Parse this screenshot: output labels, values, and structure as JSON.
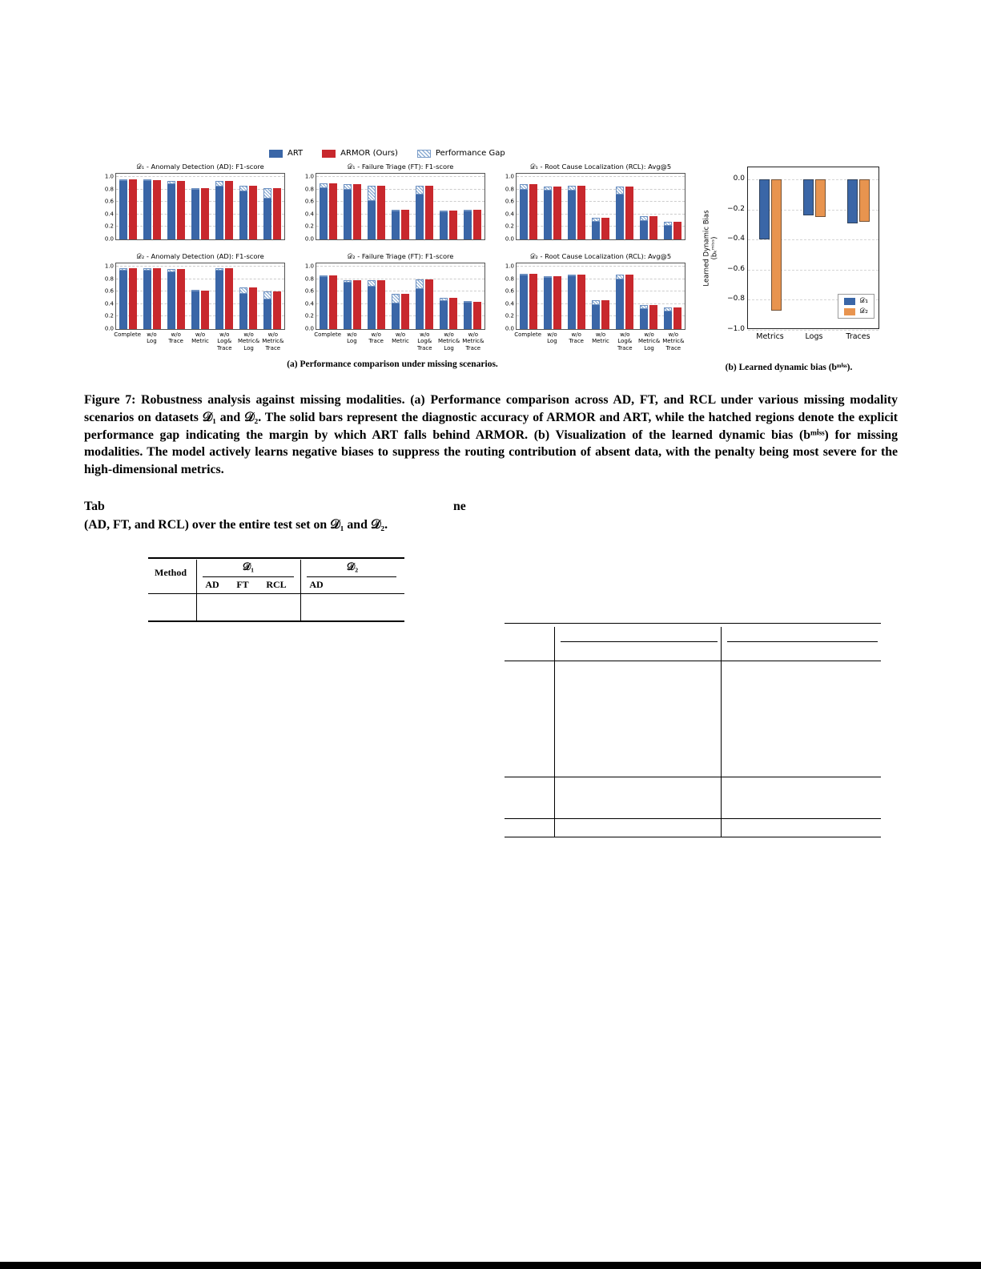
{
  "colors": {
    "art_blue": "#3A66A7",
    "armor_red": "#C8282D",
    "d2_orange": "#E8944F",
    "gap_stripe": "#8FAFD4"
  },
  "legend": {
    "art": "ART",
    "armor": "ARMOR (Ours)",
    "gap": "Performance Gap"
  },
  "captions": {
    "a": "(a) Performance comparison under missing scenarios.",
    "b": "(b) Learned dynamic bias (bᵐⁱˢˢ)."
  },
  "figure7_caption": "Figure 7: Robustness analysis against missing modalities. (a) Performance comparison across AD, FT, and RCL under various missing modality scenarios on datasets 𝒟₁ and 𝒟₂. The solid bars represent the diagnostic accuracy of ARMOR and ART, while the hatched regions denote the explicit performance gap indicating the margin by which ART falls behind ARMOR. (b) Visualization of the learned dynamic bias (bᵐⁱˢˢ) for missing modalities. The model actively learns negative biases to suppress the routing contribution of absent data, with the penalty being most severe for the high-dimensional metrics.",
  "table_caption": {
    "frag1": "Tab",
    "frag2": "ne",
    "line2": "(AD, FT, and RCL) over the entire test set on 𝒟₁ and 𝒟₂."
  },
  "table1": {
    "method": "Method",
    "group1": "𝒟₁",
    "group2": "𝒟₂",
    "cols": [
      "AD",
      "FT",
      "RCL",
      "AD"
    ]
  },
  "chart_data": {
    "performance_grid": {
      "type": "bar",
      "categories": [
        "Complete",
        "w/o\nLog",
        "w/o\nTrace",
        "w/o\nMetric",
        "w/o\nLog&\nTrace",
        "w/o\nMetric&\nLog",
        "w/o\nMetric&\nTrace"
      ],
      "yticks": [
        "0.0",
        "0.2",
        "0.4",
        "0.6",
        "0.8",
        "1.0"
      ],
      "ylim": [
        0,
        1.05
      ],
      "series_names": [
        "ART",
        "ARMOR (Ours)",
        "Performance Gap"
      ],
      "charts": [
        {
          "id": "d1_ad",
          "title": "𝒟₁ - Anomaly Detection (AD): F1-score",
          "art": [
            0.94,
            0.93,
            0.88,
            0.79,
            0.85,
            0.77,
            0.65
          ],
          "armor": [
            0.96,
            0.95,
            0.94,
            0.82,
            0.94,
            0.86,
            0.82
          ],
          "show_xlabels": false
        },
        {
          "id": "d1_ft",
          "title": "𝒟₁ - Failure Triage (FT): F1-score",
          "art": [
            0.82,
            0.8,
            0.62,
            0.45,
            0.72,
            0.43,
            0.45
          ],
          "armor": [
            0.9,
            0.88,
            0.86,
            0.48,
            0.86,
            0.46,
            0.48
          ],
          "show_xlabels": false
        },
        {
          "id": "d1_rcl",
          "title": "𝒟₁ - Root Cause Localization (RCL): Avg@5",
          "art": [
            0.8,
            0.78,
            0.78,
            0.28,
            0.72,
            0.3,
            0.22
          ],
          "armor": [
            0.88,
            0.85,
            0.86,
            0.34,
            0.85,
            0.37,
            0.28
          ],
          "show_xlabels": false
        },
        {
          "id": "d2_ad",
          "title": "𝒟₂ - Anomaly Detection (AD): F1-score",
          "art": [
            0.93,
            0.93,
            0.91,
            0.6,
            0.93,
            0.56,
            0.47
          ],
          "armor": [
            0.97,
            0.97,
            0.96,
            0.61,
            0.97,
            0.67,
            0.6
          ],
          "show_xlabels": true
        },
        {
          "id": "d2_ft",
          "title": "𝒟₂ - Failure Triage (FT): F1-score",
          "art": [
            0.83,
            0.74,
            0.68,
            0.41,
            0.64,
            0.45,
            0.42
          ],
          "armor": [
            0.86,
            0.78,
            0.78,
            0.56,
            0.8,
            0.5,
            0.44
          ],
          "show_xlabels": true
        },
        {
          "id": "d2_rcl",
          "title": "𝒟₂ - Root Cause Localization (RCL): Avg@5",
          "art": [
            0.86,
            0.82,
            0.84,
            0.38,
            0.79,
            0.32,
            0.28
          ],
          "armor": [
            0.88,
            0.85,
            0.87,
            0.46,
            0.87,
            0.39,
            0.34
          ],
          "show_xlabels": true
        }
      ]
    },
    "bias_chart": {
      "type": "bar",
      "categories": [
        "Metrics",
        "Logs",
        "Traces"
      ],
      "yticks": [
        "0.0",
        "−0.2",
        "−0.4",
        "−0.6",
        "−0.8",
        "−1.0"
      ],
      "ylim": [
        0.08,
        -1.0
      ],
      "ylabel": "Learned Dynamic Bias\n(bₖᵐⁱˢˢ)",
      "series": [
        {
          "name": "𝒟₁",
          "values": [
            -0.4,
            -0.24,
            -0.29
          ]
        },
        {
          "name": "𝒟₂",
          "values": [
            -0.87,
            -0.25,
            -0.28
          ]
        }
      ]
    }
  }
}
